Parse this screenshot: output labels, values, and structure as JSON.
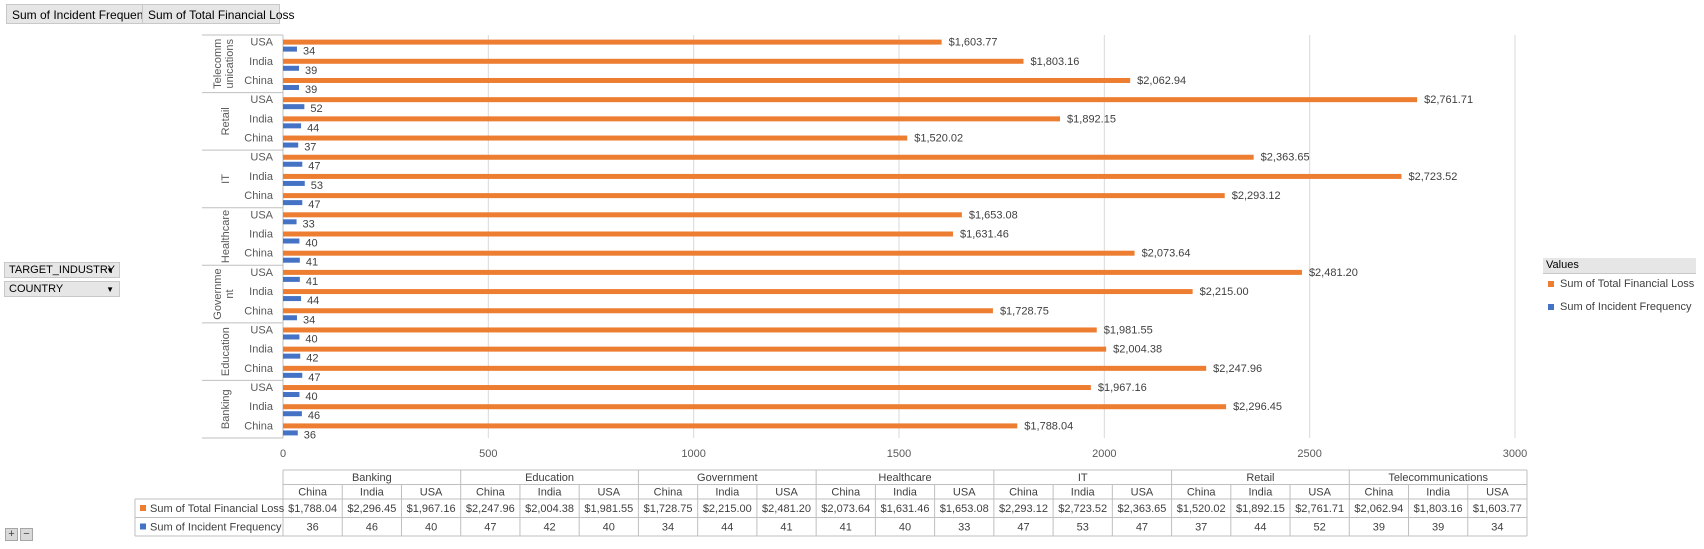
{
  "field_buttons": [
    "Sum of Incident Frequency",
    "Sum of Total Financial Loss"
  ],
  "row_fields": [
    "TARGET_INDUSTRY",
    "COUNTRY"
  ],
  "legend": {
    "title": "Values",
    "items": [
      {
        "label": "Sum of Total Financial Loss",
        "color": "#ed7d31"
      },
      {
        "label": "Sum of Incident Frequency",
        "color": "#4472c4"
      }
    ]
  },
  "controls": {
    "expand": "+",
    "collapse": "−"
  },
  "chart_data": {
    "type": "bar",
    "orientation": "horizontal",
    "industries": [
      "Banking",
      "Education",
      "Government",
      "Healthcare",
      "IT",
      "Retail",
      "Telecommunications"
    ],
    "industry_labels": [
      "Banking",
      "Education",
      "Governme nt",
      "Healthcare",
      "IT",
      "Retail",
      "Telecomm unications"
    ],
    "countries": [
      "China",
      "India",
      "USA"
    ],
    "series": [
      {
        "name": "Sum of Total Financial Loss",
        "color": "#ed7d31",
        "values": [
          1788.04,
          2296.45,
          1967.16,
          2247.96,
          2004.38,
          1981.55,
          1728.75,
          2215.0,
          2481.2,
          2073.64,
          1631.46,
          1653.08,
          2293.12,
          2723.52,
          2363.65,
          1520.02,
          1892.15,
          2761.71,
          2062.94,
          1803.16,
          1603.77
        ],
        "labels": [
          "$1,788.04",
          "$2,296.45",
          "$1,967.16",
          "$2,247.96",
          "$2,004.38",
          "$1,981.55",
          "$1,728.75",
          "$2,215.00",
          "$2,481.20",
          "$2,073.64",
          "$1,631.46",
          "$1,653.08",
          "$2,293.12",
          "$2,723.52",
          "$2,363.65",
          "$1,520.02",
          "$1,892.15",
          "$2,761.71",
          "$2,062.94",
          "$1,803.16",
          "$1,603.77"
        ]
      },
      {
        "name": "Sum of Incident Frequency",
        "color": "#4472c4",
        "values": [
          36,
          46,
          40,
          47,
          42,
          40,
          34,
          44,
          41,
          41,
          40,
          33,
          47,
          53,
          47,
          37,
          44,
          52,
          39,
          39,
          34
        ],
        "labels": [
          "36",
          "46",
          "40",
          "47",
          "42",
          "40",
          "34",
          "44",
          "41",
          "41",
          "40",
          "33",
          "47",
          "53",
          "47",
          "37",
          "44",
          "52",
          "39",
          "39",
          "34"
        ]
      }
    ],
    "xlim": [
      0,
      3000
    ],
    "xticks": [
      "0",
      "500",
      "1000",
      "1500",
      "2000",
      "2500",
      "3000"
    ],
    "grid": true,
    "legend_position": "right"
  }
}
